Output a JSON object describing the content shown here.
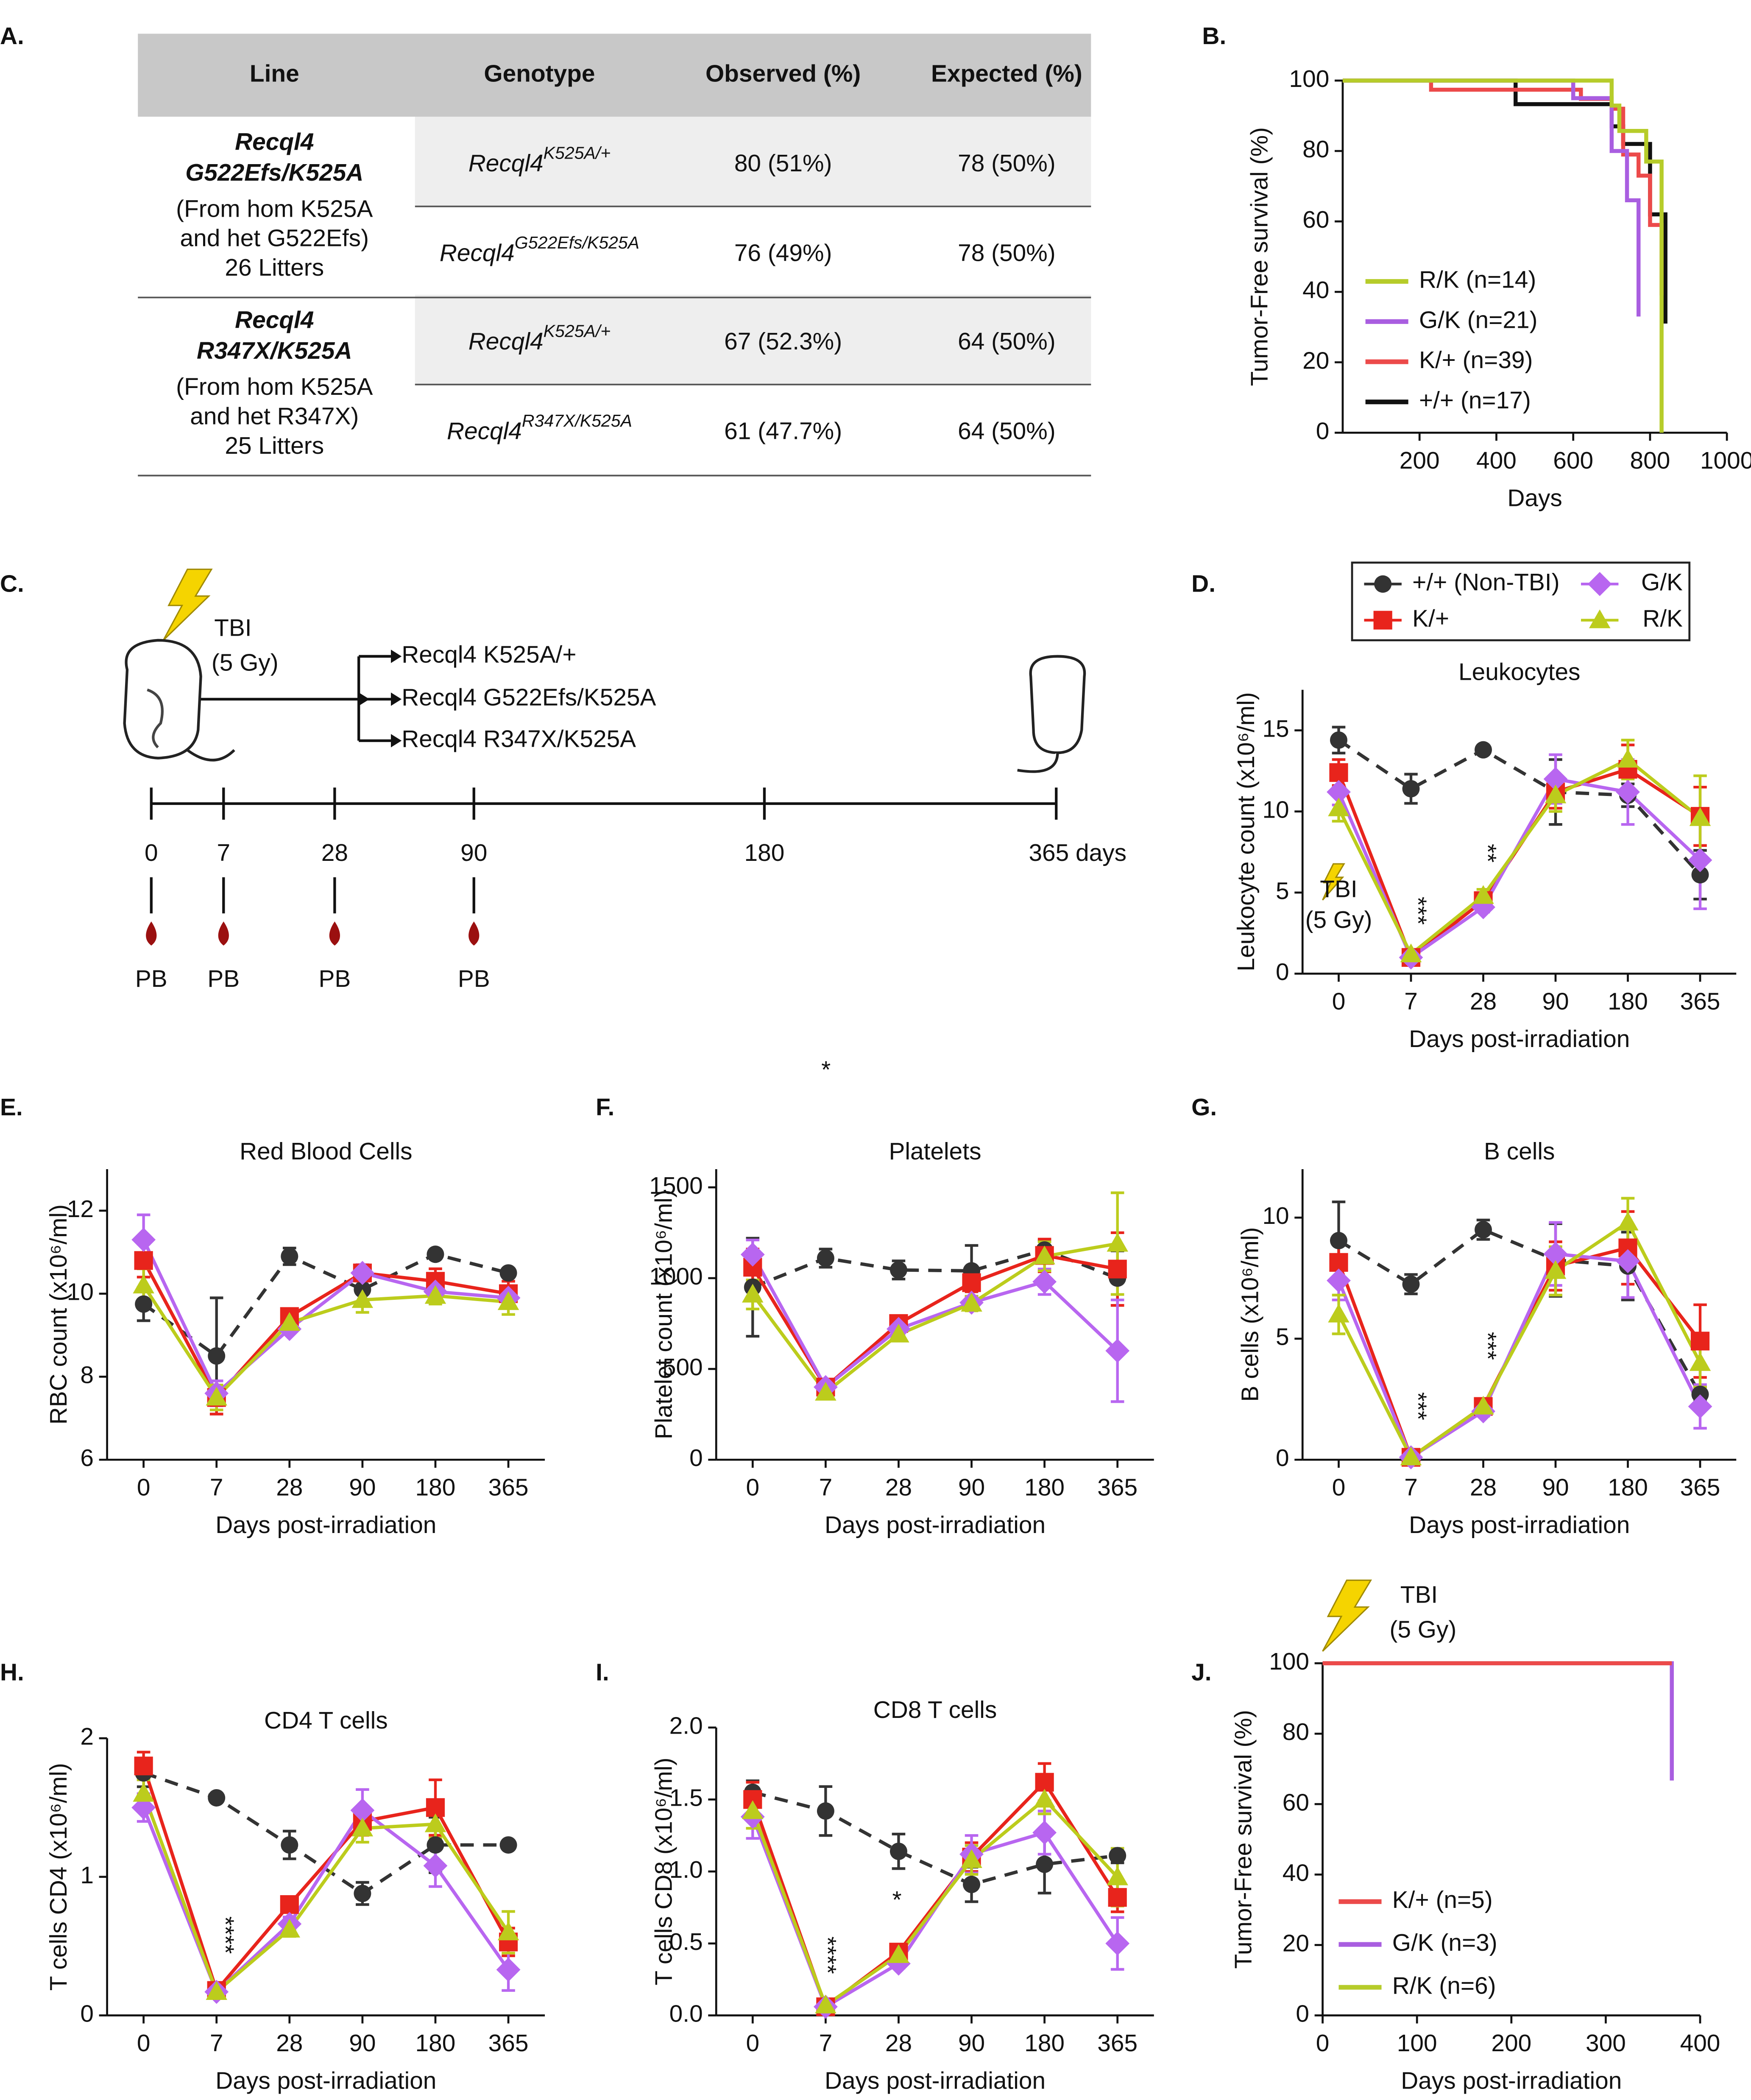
{
  "table": {
    "panel": "A.",
    "header": [
      "Line",
      "Genotype",
      "Observed (%)",
      "Expected (%)"
    ],
    "groups": [
      {
        "line": [
          "Recql4",
          "G522Efs/K525A"
        ],
        "line_note": [
          "(From hom K525A",
          "and het G522Efs)",
          "26 Litters"
        ],
        "rows": [
          {
            "genotype": {
              "base": "Recql4",
              "sup": "K525A/+"
            },
            "observed": "80 (51%)",
            "expected": "78 (50%)"
          },
          {
            "genotype": {
              "base": "Recql4",
              "sup": "G522Efs/K525A"
            },
            "observed": "76 (49%)",
            "expected": "78 (50%)"
          }
        ]
      },
      {
        "line": [
          "Recql4",
          "R347X/K525A"
        ],
        "line_note": [
          "(From hom K525A",
          "and het R347X)",
          "25 Litters"
        ],
        "rows": [
          {
            "genotype": {
              "base": "Recql4",
              "sup": "K525A/+"
            },
            "observed": "67 (52.3%)",
            "expected": "64 (50%)"
          },
          {
            "genotype": {
              "base": "Recql4",
              "sup": "R347X/K525A"
            },
            "observed": "61 (47.7%)",
            "expected": "64 (50%)"
          }
        ]
      }
    ]
  },
  "diagram": {
    "panel": "C.",
    "treatment": [
      "TBI",
      "(5 Gy)"
    ],
    "arms": [
      "Recql4 K525A/+",
      "Recql4 G522Efs/K525A",
      "Recql4 R347X/K525A"
    ],
    "timeline": [
      "0",
      "7",
      "28",
      "90",
      "180",
      "365 days"
    ],
    "sampling": [
      "PB",
      "PB",
      "PB",
      "PB"
    ]
  },
  "chart_data": [
    {
      "type": "step",
      "panel": "B.",
      "ylabel": "Tumor-Free survival (%)",
      "xlabel": "Days",
      "xlim": [
        0,
        1000
      ],
      "xticks": [
        200,
        400,
        600,
        800,
        1000
      ],
      "ylim": [
        0,
        100
      ],
      "yticks": [
        0,
        20,
        40,
        60,
        80,
        100
      ],
      "legend": "lower left",
      "series": [
        {
          "name": "+/+ (n=17)",
          "color": "#111111",
          "x": [
            0,
            450,
            700,
            730,
            800,
            840
          ],
          "values": [
            100,
            93.3,
            87,
            82,
            62,
            31
          ]
        },
        {
          "name": "K/+ (n=39)",
          "color": "#ec4a4a",
          "x": [
            0,
            230,
            620,
            700,
            730,
            770,
            800,
            830
          ],
          "values": [
            100,
            97.4,
            94.8,
            92,
            79,
            73,
            59,
            39
          ]
        },
        {
          "name": "G/K (n=21)",
          "color": "#a95ee0",
          "x": [
            0,
            600,
            700,
            740,
            770
          ],
          "values": [
            100,
            95,
            80,
            66,
            33
          ]
        },
        {
          "name": "R/K (n=14)",
          "color": "#b6cc2a",
          "x": [
            0,
            700,
            720,
            790,
            830
          ],
          "values": [
            100,
            92.9,
            85.7,
            77,
            0
          ]
        }
      ]
    },
    {
      "type": "line",
      "panel": "D.",
      "title": "Leukocytes",
      "ylabel": "Leukocyte count (x10⁶/ml)",
      "xlabel": "Days post-irradiation",
      "categories": [
        "0",
        "7",
        "28",
        "90",
        "180",
        "365"
      ],
      "ylim": [
        0,
        17.5
      ],
      "yticks": [
        0,
        5,
        10,
        15
      ],
      "legend": "top",
      "annotations": [
        "***",
        "**",
        "TBI",
        "(5 Gy)"
      ],
      "series": [
        {
          "name": "+/+ (Non-TBI)",
          "color": "#333333",
          "marker": "circle",
          "dash": true,
          "values": [
            14.4,
            11.4,
            13.8,
            11.2,
            11.0,
            6.1
          ],
          "errors": [
            0.8,
            0.9,
            0.2,
            2,
            0.7,
            1.5
          ]
        },
        {
          "name": "K/+",
          "color": "#e8241c",
          "marker": "square",
          "values": [
            12.4,
            1.0,
            4.5,
            11.2,
            12.6,
            9.7
          ],
          "errors": [
            0.8,
            0.2,
            0.5,
            1,
            1.5,
            1.8
          ]
        },
        {
          "name": "G/K",
          "color": "#b866f0",
          "marker": "diamond",
          "values": [
            11.2,
            1.0,
            4.1,
            12.0,
            11.2,
            7.0
          ],
          "errors": [
            0.8,
            0.2,
            0.3,
            1.5,
            2,
            3
          ]
        },
        {
          "name": "R/K",
          "color": "#bccc1c",
          "marker": "triangle",
          "values": [
            10.2,
            1.2,
            4.8,
            11.0,
            13.2,
            9.6
          ],
          "errors": [
            0.8,
            0.2,
            0.4,
            1,
            1.2,
            2.6
          ]
        }
      ]
    },
    {
      "type": "line",
      "panel": "E.",
      "title": "Red Blood Cells",
      "ylabel": "RBC count (x10⁶/ml)",
      "xlabel": "Days post-irradiation",
      "categories": [
        "0",
        "7",
        "28",
        "90",
        "180",
        "365"
      ],
      "ylim": [
        6,
        13
      ],
      "yticks": [
        6,
        8,
        10,
        12
      ],
      "series": [
        {
          "color": "#333333",
          "marker": "circle",
          "dash": true,
          "values": [
            9.75,
            8.5,
            10.9,
            10.1,
            10.95,
            10.5
          ],
          "errors": [
            0.4,
            1.4,
            0.2,
            0.3,
            0.1,
            0.1
          ]
        },
        {
          "color": "#e8241c",
          "marker": "square",
          "values": [
            10.8,
            7.5,
            9.45,
            10.5,
            10.3,
            10.0
          ],
          "errors": [
            0.4,
            0.4,
            0.15,
            0.2,
            0.3,
            0.3
          ]
        },
        {
          "color": "#b866f0",
          "marker": "diamond",
          "values": [
            11.3,
            7.6,
            9.15,
            10.5,
            10.05,
            9.9
          ],
          "errors": [
            0.6,
            0.3,
            0.1,
            0.2,
            0.2,
            0.2
          ]
        },
        {
          "color": "#bccc1c",
          "marker": "triangle",
          "values": [
            10.2,
            7.5,
            9.3,
            9.85,
            9.95,
            9.8
          ],
          "errors": [
            0.4,
            0.3,
            0.1,
            0.3,
            0.2,
            0.3
          ]
        }
      ]
    },
    {
      "type": "line",
      "panel": "F.",
      "title": "Platelets",
      "ylabel": "Platelet count (x10⁶/ml)",
      "xlabel": "Days post-irradiation",
      "categories": [
        "0",
        "7",
        "28",
        "90",
        "180",
        "365"
      ],
      "ylim": [
        0,
        1600
      ],
      "yticks": [
        0,
        500,
        1000,
        1500
      ],
      "annotations": [
        "*"
      ],
      "series": [
        {
          "color": "#333333",
          "marker": "circle",
          "dash": true,
          "values": [
            950,
            1110,
            1045,
            1040,
            1155,
            1000
          ],
          "errors": [
            270,
            50,
            50,
            140,
            50,
            150
          ]
        },
        {
          "color": "#e8241c",
          "marker": "square",
          "values": [
            1060,
            400,
            750,
            975,
            1125,
            1050
          ],
          "errors": [
            100,
            30,
            30,
            50,
            90,
            200
          ]
        },
        {
          "color": "#b866f0",
          "marker": "diamond",
          "values": [
            1130,
            400,
            720,
            865,
            980,
            600
          ],
          "errors": [
            80,
            30,
            30,
            30,
            70,
            280
          ]
        },
        {
          "color": "#bccc1c",
          "marker": "triangle",
          "values": [
            910,
            370,
            690,
            860,
            1120,
            1190
          ],
          "errors": [
            80,
            30,
            30,
            40,
            80,
            280
          ]
        }
      ]
    },
    {
      "type": "line",
      "panel": "G.",
      "title": "B cells",
      "ylabel": "B cells (x10⁶/ml)",
      "xlabel": "Days post-irradiation",
      "categories": [
        "0",
        "7",
        "28",
        "90",
        "180",
        "365"
      ],
      "ylim": [
        0,
        12
      ],
      "yticks": [
        0,
        5,
        10
      ],
      "annotations": [
        "***",
        "***"
      ],
      "series": [
        {
          "color": "#333333",
          "marker": "circle",
          "dash": true,
          "values": [
            9.05,
            7.25,
            9.5,
            8.25,
            8.0,
            2.7
          ],
          "errors": [
            1.6,
            0.4,
            0.4,
            1.5,
            1.4,
            0.3
          ]
        },
        {
          "color": "#e8241c",
          "marker": "square",
          "values": [
            8.15,
            0.1,
            2.2,
            8.0,
            8.75,
            4.9
          ],
          "errors": [
            0.8,
            0.05,
            0.2,
            1,
            1.5,
            1.5
          ]
        },
        {
          "color": "#b866f0",
          "marker": "diamond",
          "values": [
            7.4,
            0.1,
            2.0,
            8.5,
            8.2,
            2.2
          ],
          "errors": [
            0.8,
            0.05,
            0.2,
            1.3,
            1.5,
            0.9
          ]
        },
        {
          "color": "#bccc1c",
          "marker": "triangle",
          "values": [
            6.0,
            0.1,
            2.2,
            7.8,
            9.8,
            4.0
          ],
          "errors": [
            0.8,
            0.05,
            0.2,
            1,
            1,
            1
          ]
        }
      ]
    },
    {
      "type": "line",
      "panel": "H.",
      "title": "CD4 T cells",
      "ylabel": "T cells CD4 (x10⁶/ml)",
      "xlabel": "Days post-irradiation",
      "categories": [
        "0",
        "7",
        "28",
        "90",
        "180",
        "365"
      ],
      "ylim": [
        0,
        2
      ],
      "yticks": [
        0,
        1,
        2
      ],
      "annotations": [
        "****"
      ],
      "series": [
        {
          "color": "#333333",
          "marker": "circle",
          "dash": true,
          "values": [
            1.75,
            1.57,
            1.23,
            0.88,
            1.23,
            1.23
          ],
          "errors": [
            0.1,
            0.02,
            0.1,
            0.08,
            0.2,
            0.03
          ]
        },
        {
          "color": "#e8241c",
          "marker": "square",
          "values": [
            1.8,
            0.18,
            0.8,
            1.4,
            1.5,
            0.53
          ],
          "errors": [
            0.1,
            0.03,
            0.03,
            0.1,
            0.2,
            0.1
          ]
        },
        {
          "color": "#b866f0",
          "marker": "diamond",
          "values": [
            1.5,
            0.17,
            0.66,
            1.48,
            1.08,
            0.33
          ],
          "errors": [
            0.1,
            0.03,
            0.05,
            0.15,
            0.15,
            0.15
          ]
        },
        {
          "color": "#bccc1c",
          "marker": "triangle",
          "values": [
            1.6,
            0.17,
            0.62,
            1.35,
            1.38,
            0.6
          ],
          "errors": [
            0.1,
            0.03,
            0.05,
            0.1,
            0.1,
            0.15
          ]
        }
      ]
    },
    {
      "type": "line",
      "panel": "I.",
      "title": "CD8 T cells",
      "ylabel": "T cells CD8 (x10⁶/ml)",
      "xlabel": "Days post-irradiation",
      "categories": [
        "0",
        "7",
        "28",
        "90",
        "180",
        "365"
      ],
      "ylim": [
        0,
        2
      ],
      "yticks": [
        {
          "value": 0,
          "label": "0.0"
        },
        0.5,
        {
          "value": 1,
          "label": "1.0"
        },
        1.5,
        {
          "value": 2,
          "label": "2.0"
        }
      ],
      "annotations": [
        "****",
        "*"
      ],
      "series": [
        {
          "color": "#333333",
          "marker": "circle",
          "dash": true,
          "values": [
            1.55,
            1.42,
            1.14,
            0.91,
            1.05,
            1.11
          ],
          "errors": [
            0.08,
            0.17,
            0.12,
            0.12,
            0.2,
            0.05
          ]
        },
        {
          "color": "#e8241c",
          "marker": "square",
          "values": [
            1.5,
            0.06,
            0.44,
            1.1,
            1.62,
            0.82
          ],
          "errors": [
            0.12,
            0.02,
            0.03,
            0.1,
            0.13,
            0.1
          ]
        },
        {
          "color": "#b866f0",
          "marker": "diamond",
          "values": [
            1.38,
            0.06,
            0.36,
            1.12,
            1.27,
            0.5
          ],
          "errors": [
            0.15,
            0.02,
            0.03,
            0.13,
            0.15,
            0.18
          ]
        },
        {
          "color": "#bccc1c",
          "marker": "triangle",
          "values": [
            1.42,
            0.07,
            0.42,
            1.08,
            1.5,
            0.96
          ],
          "errors": [
            0.12,
            0.02,
            0.03,
            0.1,
            0.1,
            0.2
          ]
        }
      ]
    },
    {
      "type": "step",
      "panel": "J.",
      "ylabel": "Tumor-Free survival (%)",
      "xlabel": "Days post-irradiation",
      "xlim": [
        0,
        400
      ],
      "xticks": [
        0,
        100,
        200,
        300,
        400
      ],
      "ylim": [
        0,
        100
      ],
      "yticks": [
        0,
        20,
        40,
        60,
        80,
        100
      ],
      "legend": "lower left",
      "annotations": [
        "TBI",
        "(5 Gy)"
      ],
      "series": [
        {
          "name": "R/K (n=6)",
          "color": "#b6cc2a",
          "x": [
            0,
            370
          ],
          "values": [
            100,
            100
          ]
        },
        {
          "name": "G/K (n=3)",
          "color": "#a95ee0",
          "x": [
            0,
            370
          ],
          "values": [
            100,
            66.7
          ]
        },
        {
          "name": "K/+ (n=5)",
          "color": "#ec4a4a",
          "x": [
            0,
            370
          ],
          "values": [
            100,
            100
          ]
        }
      ]
    }
  ]
}
